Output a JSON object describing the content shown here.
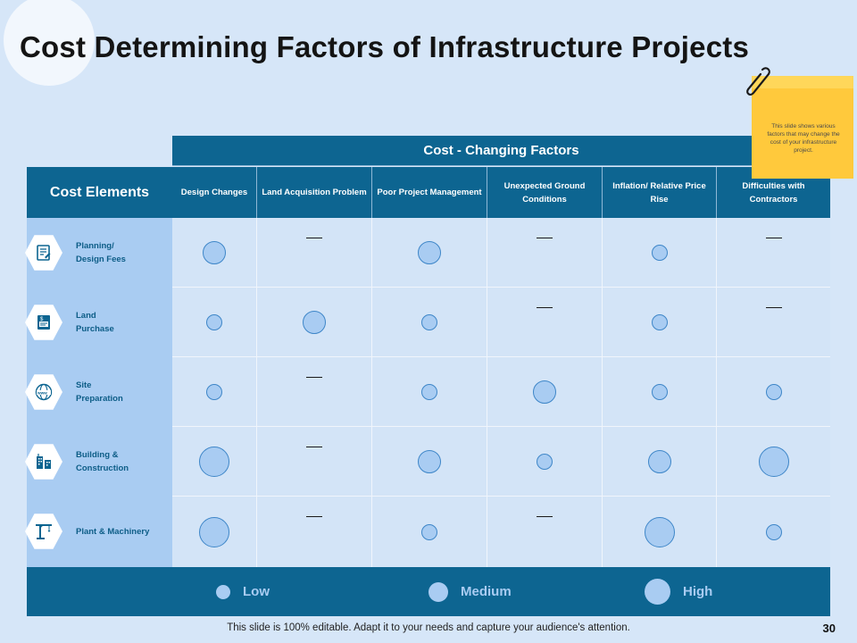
{
  "title": "Cost Determining Factors of Infrastructure Projects",
  "table": {
    "changing_factors_header": "Cost - Changing Factors",
    "cost_elements_header": "Cost Elements",
    "columns": [
      "Design Changes",
      "Land Acquisition Problem",
      "Poor Project Management",
      "Unexpected Ground Conditions",
      "Inflation/ Relative Price Rise",
      "Difficulties with Contractors"
    ],
    "rows": [
      {
        "label_line1": "Planning/",
        "label_line2": "Design Fees",
        "icon": "document-icon",
        "values": [
          "medium",
          "none",
          "medium",
          "none",
          "low",
          "none"
        ]
      },
      {
        "label_line1": "Land",
        "label_line2": "Purchase",
        "icon": "land-document-icon",
        "values": [
          "low",
          "medium",
          "low",
          "none",
          "low",
          "none"
        ]
      },
      {
        "label_line1": "Site",
        "label_line2": "Preparation",
        "icon": "globe-icon",
        "values": [
          "low",
          "none",
          "low",
          "medium",
          "low",
          "low"
        ]
      },
      {
        "label_line1": "Building &",
        "label_line2": "Construction",
        "icon": "buildings-icon",
        "values": [
          "high",
          "none",
          "medium",
          "low",
          "medium",
          "high"
        ]
      },
      {
        "label_line1": "Plant & Machinery",
        "label_line2": "",
        "icon": "crane-icon",
        "values": [
          "high",
          "none",
          "low",
          "none",
          "high",
          "low"
        ]
      }
    ]
  },
  "legend": {
    "low": "Low",
    "medium": "Medium",
    "high": "High"
  },
  "sticky_note": "This slide shows various factors that may change the cost of your infrastructure project.",
  "footer": "This slide is 100% editable. Adapt it to your needs and capture your audience's attention.",
  "page_number": "30",
  "colors": {
    "header_blue": "#0d6591",
    "light_blue": "#a9ccf2",
    "background": "#d6e6f8",
    "sticky_yellow": "#ffc93c"
  }
}
